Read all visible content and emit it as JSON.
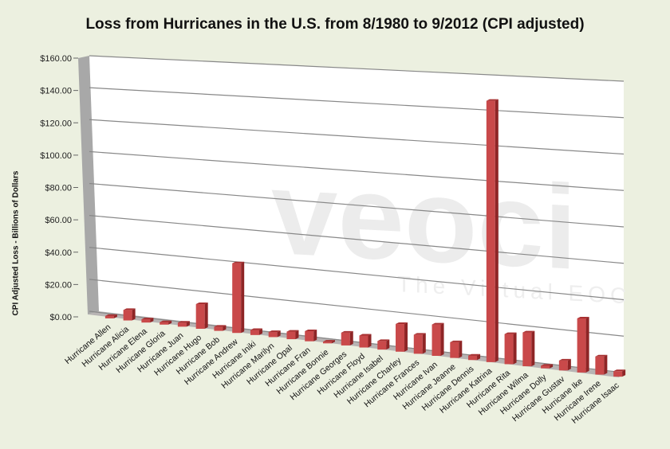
{
  "chart_data": {
    "type": "bar",
    "title": "Loss from Hurricanes in the U.S. from 8/1980 to 9/2012 (CPI adjusted)",
    "xlabel": "",
    "ylabel": "CPI Adjusted Loss  - Billions of Dollars",
    "ylim": [
      0,
      160
    ],
    "yticks": [
      "$0.00",
      "$20.00",
      "$40.00",
      "$60.00",
      "$80.00",
      "$100.00",
      "$120.00",
      "$140.00",
      "$160.00"
    ],
    "grid": true,
    "legend": null,
    "style": "3d-column",
    "bar_color": "#c0393b",
    "watermark": {
      "logo": "veoci",
      "tagline": "The Virtual EOC"
    },
    "categories": [
      "Hurricane Allen",
      "Hurricane Alicia",
      "Hurricane Elena",
      "Hurricane Gloria",
      "Hurricane Juan",
      "Hurricane Hugo",
      "Hurricane Bob",
      "Hurricane Andrew",
      "Hurricane Iniki",
      "Hurricane Marilyn",
      "Hurricane Opal",
      "Hurricane Fran",
      "Hurricane Bonnie",
      "Hurricane Georges",
      "Hurricane Floyd",
      "Hurricane Isabel",
      "Hurricane Charley",
      "Hurricane Frances",
      "Hurricane Ivan",
      "Hurricane Jeanne",
      "Hurricane Dennis",
      "Hurricane Katrina",
      "Hurricane Rita",
      "Hurricane Wilma",
      "Hurricane Dolly",
      "Hurricane Gustav",
      "Hurricane Ike",
      "Hurricane Irene",
      "Hurricane Isaac"
    ],
    "values": [
      1.5,
      6.5,
      2,
      1.5,
      2.5,
      15,
      2.5,
      42,
      3,
      3,
      4.5,
      6,
      1,
      7.5,
      7,
      5,
      16,
      11,
      18,
      9,
      2.5,
      148,
      17,
      19,
      1.5,
      5.5,
      30,
      10,
      3
    ]
  }
}
